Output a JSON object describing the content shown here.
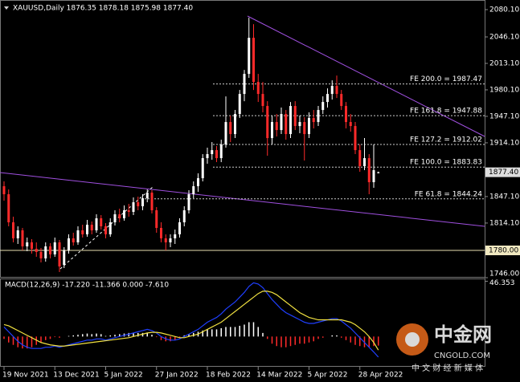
{
  "chart_data": [
    {
      "type": "candlestick",
      "title": "XAUUSD,Daily  1876.35 1878.18 1875.98 1877.40",
      "up_color": "#ffffff",
      "down_color": "#ff2a2a",
      "ylim": [
        1746,
        2090.1
      ],
      "yticks": [
        {
          "value": 2080.1,
          "label": "2080.10"
        },
        {
          "value": 2046.1,
          "label": "2046.10"
        },
        {
          "value": 2013.1,
          "label": "2013.10"
        },
        {
          "value": 1980.1,
          "label": "1980.10"
        },
        {
          "value": 1947.1,
          "label": "1947.10"
        },
        {
          "value": 1914.1,
          "label": "1914.10"
        },
        {
          "value": 1847.1,
          "label": "1847.10"
        },
        {
          "value": 1814.1,
          "label": "1814.10"
        },
        {
          "value": 1746,
          "label": "1746.00"
        }
      ],
      "xticks": [
        {
          "value": 0,
          "label": "19 Nov 2021"
        },
        {
          "value": 11,
          "label": "13 Dec 2021"
        },
        {
          "value": 22,
          "label": "5 Jan 2022"
        },
        {
          "value": 33,
          "label": "27 Jan 2022"
        },
        {
          "value": 44,
          "label": "18 Feb 2022"
        },
        {
          "value": 55,
          "label": "14 Mar 2022"
        },
        {
          "value": 66,
          "label": "5 Apr 2022"
        },
        {
          "value": 77,
          "label": "28 Apr 2022"
        }
      ],
      "levels": [
        {
          "value": 1987.47,
          "label": "FE 200.0 = 1987.47"
        },
        {
          "value": 1947.88,
          "label": "FE 161.8 = 1947.88"
        },
        {
          "value": 1912.02,
          "label": "FE 127.2 = 1912.02"
        },
        {
          "value": 1883.83,
          "label": "FE 100.0 = 1883.83"
        },
        {
          "value": 1844.24,
          "label": "FE 61.8 = 1844.24"
        }
      ],
      "hline": {
        "value": 1780,
        "label": "1780.00"
      },
      "last": {
        "value": 1877.4,
        "label": "1877.40"
      },
      "ohlc": [
        [
          1860,
          1866,
          1842,
          1850
        ],
        [
          1850,
          1856,
          1810,
          1815
        ],
        [
          1815,
          1822,
          1790,
          1795
        ],
        [
          1795,
          1810,
          1788,
          1805
        ],
        [
          1805,
          1808,
          1780,
          1785
        ],
        [
          1785,
          1796,
          1779,
          1790
        ],
        [
          1790,
          1794,
          1776,
          1782
        ],
        [
          1782,
          1790,
          1772,
          1778
        ],
        [
          1778,
          1783,
          1765,
          1770
        ],
        [
          1770,
          1790,
          1766,
          1785
        ],
        [
          1785,
          1789,
          1770,
          1775
        ],
        [
          1775,
          1796,
          1772,
          1790
        ],
        [
          1790,
          1793,
          1753,
          1760
        ],
        [
          1762,
          1784,
          1758,
          1780
        ],
        [
          1780,
          1800,
          1776,
          1795
        ],
        [
          1795,
          1802,
          1786,
          1790
        ],
        [
          1790,
          1810,
          1787,
          1805
        ],
        [
          1805,
          1812,
          1796,
          1800
        ],
        [
          1800,
          1818,
          1797,
          1812
        ],
        [
          1812,
          1816,
          1800,
          1805
        ],
        [
          1805,
          1825,
          1802,
          1820
        ],
        [
          1820,
          1824,
          1806,
          1810
        ],
        [
          1810,
          1814,
          1795,
          1800
        ],
        [
          1800,
          1820,
          1797,
          1815
        ],
        [
          1815,
          1830,
          1811,
          1825
        ],
        [
          1825,
          1832,
          1815,
          1820
        ],
        [
          1820,
          1836,
          1817,
          1830
        ],
        [
          1830,
          1838,
          1822,
          1828
        ],
        [
          1828,
          1846,
          1824,
          1840
        ],
        [
          1840,
          1847,
          1830,
          1835
        ],
        [
          1835,
          1850,
          1830,
          1845
        ],
        [
          1845,
          1856,
          1840,
          1852
        ],
        [
          1852,
          1855,
          1826,
          1830
        ],
        [
          1830,
          1834,
          1802,
          1808
        ],
        [
          1808,
          1815,
          1790,
          1795
        ],
        [
          1795,
          1800,
          1780,
          1790
        ],
        [
          1790,
          1800,
          1784,
          1795
        ],
        [
          1795,
          1806,
          1788,
          1800
        ],
        [
          1800,
          1820,
          1796,
          1815
        ],
        [
          1815,
          1835,
          1810,
          1830
        ],
        [
          1830,
          1855,
          1826,
          1850
        ],
        [
          1850,
          1866,
          1845,
          1860
        ],
        [
          1860,
          1876,
          1853,
          1870
        ],
        [
          1870,
          1900,
          1866,
          1895
        ],
        [
          1895,
          1908,
          1888,
          1900
        ],
        [
          1900,
          1915,
          1893,
          1905
        ],
        [
          1905,
          1910,
          1890,
          1895
        ],
        [
          1895,
          1918,
          1890,
          1912
        ],
        [
          1912,
          1972,
          1908,
          1940
        ],
        [
          1940,
          1948,
          1915,
          1925
        ],
        [
          1925,
          1955,
          1920,
          1950
        ],
        [
          1950,
          1980,
          1945,
          1975
        ],
        [
          1975,
          2005,
          1966,
          2000
        ],
        [
          2000,
          2070,
          1995,
          2045
        ],
        [
          2045,
          2062,
          1980,
          1990
        ],
        [
          1990,
          2000,
          1965,
          1975
        ],
        [
          1975,
          1990,
          1952,
          1960
        ],
        [
          1960,
          1966,
          1898,
          1920
        ],
        [
          1920,
          1948,
          1912,
          1940
        ],
        [
          1940,
          1950,
          1922,
          1930
        ],
        [
          1930,
          1958,
          1925,
          1950
        ],
        [
          1950,
          1955,
          1918,
          1925
        ],
        [
          1925,
          1965,
          1920,
          1960
        ],
        [
          1960,
          1966,
          1930,
          1935
        ],
        [
          1935,
          1948,
          1926,
          1940
        ],
        [
          1940,
          1946,
          1892,
          1925
        ],
        [
          1925,
          1952,
          1920,
          1945
        ],
        [
          1945,
          1955,
          1932,
          1940
        ],
        [
          1940,
          1960,
          1935,
          1955
        ],
        [
          1955,
          1972,
          1950,
          1965
        ],
        [
          1965,
          1982,
          1958,
          1975
        ],
        [
          1975,
          1992,
          1968,
          1985
        ],
        [
          1985,
          1998,
          1970,
          1975
        ],
        [
          1975,
          1980,
          1955,
          1960
        ],
        [
          1960,
          1965,
          1932,
          1940
        ],
        [
          1940,
          1950,
          1928,
          1935
        ],
        [
          1935,
          1940,
          1900,
          1905
        ],
        [
          1905,
          1912,
          1878,
          1885
        ],
        [
          1885,
          1920,
          1880,
          1895
        ],
        [
          1895,
          1900,
          1850,
          1865
        ],
        [
          1865,
          1912,
          1858,
          1880
        ],
        [
          1876.35,
          1878.18,
          1875.98,
          1877.4
        ]
      ]
    },
    {
      "type": "macd",
      "title": "MACD(12,26,9) -17.220 -11.366 0.000 -7.610",
      "ylim": [
        -24,
        48
      ],
      "yticks": [
        46.353
      ],
      "up_color": "#ffffff",
      "down_color": "#ff2a2a",
      "macd_color": "#1f3fff",
      "signal_color": "#f0e040",
      "histogram": [
        -2,
        -5,
        -7,
        -9,
        -10,
        -10,
        -9,
        -7,
        -5,
        -3,
        -2,
        -0.5,
        -1,
        0,
        0.5,
        1,
        1.5,
        2,
        2.5,
        2,
        2.5,
        2,
        0.5,
        1,
        1.5,
        2,
        2.5,
        3,
        3,
        3,
        3,
        3,
        1.5,
        -0.5,
        -3,
        -4,
        -4,
        -3,
        -1,
        1,
        2,
        3,
        4,
        5,
        6,
        6,
        6,
        7,
        8,
        8,
        8,
        9,
        10,
        12,
        12,
        8,
        3,
        -2,
        -6,
        -8,
        -9,
        -9,
        -8,
        -7,
        -6,
        -6,
        -5,
        -4,
        -2,
        -1,
        0,
        1,
        1,
        -1,
        -3,
        -5,
        -7,
        -8,
        -9,
        -9,
        -8,
        -7.61
      ],
      "macd": [
        8,
        4,
        0,
        -4,
        -7,
        -9,
        -10,
        -10,
        -10,
        -9,
        -9,
        -8,
        -9,
        -8,
        -7,
        -6,
        -5,
        -4,
        -3,
        -3,
        -2,
        -2,
        -3,
        -2,
        -1,
        0,
        1,
        2,
        3,
        4,
        5,
        6,
        5,
        3,
        0,
        -2,
        -3,
        -3,
        -2,
        0,
        2,
        4,
        6,
        9,
        12,
        14,
        16,
        19,
        23,
        26,
        29,
        33,
        37,
        42,
        45,
        44,
        41,
        36,
        31,
        27,
        23,
        20,
        18,
        16,
        14,
        12,
        11,
        11,
        12,
        13,
        14,
        15,
        15,
        13,
        10,
        7,
        3,
        -1,
        -5,
        -9,
        -13,
        -17.22
      ],
      "signal": [
        10,
        9,
        7,
        5,
        3,
        1,
        -1,
        -3,
        -5,
        -6,
        -7,
        -7.5,
        -8,
        -8,
        -7.5,
        -7,
        -6.5,
        -6,
        -5.5,
        -5,
        -4.5,
        -4,
        -3.5,
        -3,
        -2.5,
        -2,
        -1.5,
        -1,
        0,
        1,
        2,
        3,
        3.5,
        3.5,
        3,
        2,
        1,
        0,
        -1,
        -1,
        0,
        1,
        2,
        4,
        6,
        8,
        10,
        12,
        15,
        18,
        21,
        24,
        27,
        30,
        33,
        36,
        38,
        38,
        37,
        35,
        32,
        29,
        26,
        23,
        20,
        18,
        16,
        15,
        14,
        14,
        14,
        14,
        14,
        14,
        13,
        12,
        10,
        7,
        4,
        0,
        -5,
        -11.366
      ]
    },
    {
      "type": "watermark",
      "name": "中金网",
      "site": "CNGOLD.COM",
      "slogan": "中 文 财 经 新 媒 体"
    }
  ]
}
